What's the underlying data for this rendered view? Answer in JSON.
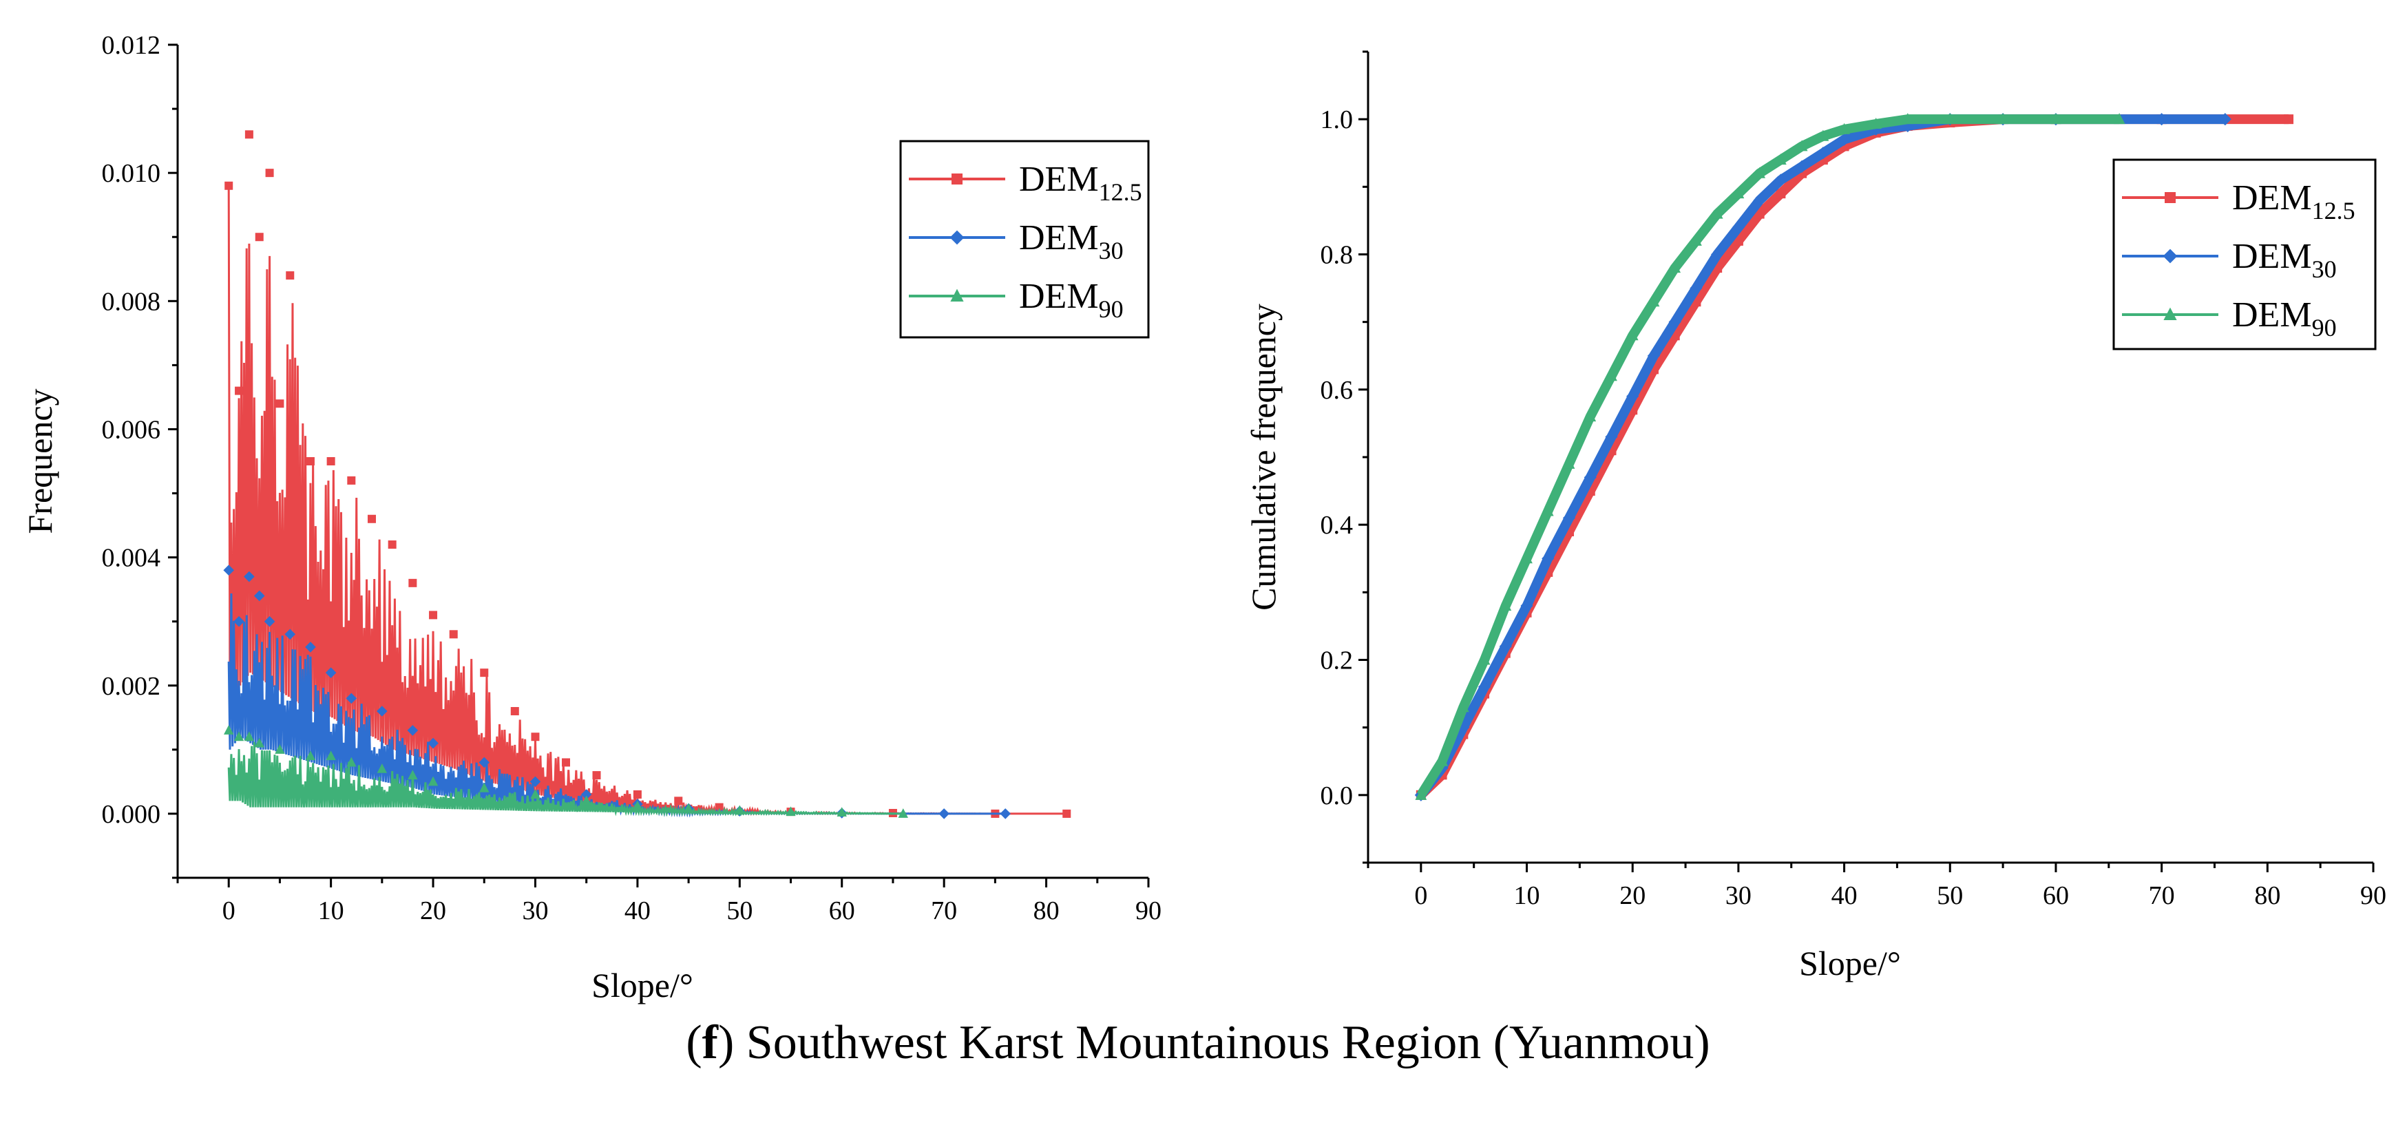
{
  "colors": {
    "dem125": "#e8474a",
    "dem30": "#2e6fd1",
    "dem90": "#3fb178",
    "axis": "#000000"
  },
  "caption": {
    "letter": "f",
    "text": "Southwest Karst Mountainous Region (Yuanmou)"
  },
  "chart_data": [
    {
      "type": "line",
      "title": "",
      "xlabel": "Slope/°",
      "ylabel": "Frequency",
      "xlim": [
        -5,
        90
      ],
      "ylim": [
        -0.001,
        0.012
      ],
      "xticks": [
        0,
        10,
        20,
        30,
        40,
        50,
        60,
        70,
        80,
        90
      ],
      "yticks": [
        0.0,
        0.002,
        0.004,
        0.006,
        0.008,
        0.01,
        0.012
      ],
      "ytick_labels": [
        "0.000",
        "0.002",
        "0.004",
        "0.006",
        "0.008",
        "0.010",
        "0.012"
      ],
      "legend_position": "top-right",
      "series": [
        {
          "name": "DEM12.5",
          "label_main": "DEM",
          "label_sub": "12.5",
          "color_key": "dem125",
          "marker": "square",
          "x": [
            0,
            1,
            2,
            3,
            4,
            5,
            6,
            8,
            10,
            12,
            14,
            16,
            18,
            20,
            22,
            25,
            28,
            30,
            33,
            36,
            40,
            44,
            48,
            55,
            65,
            75,
            82
          ],
          "y": [
            0.0098,
            0.0066,
            0.0106,
            0.009,
            0.01,
            0.0064,
            0.0084,
            0.0055,
            0.0055,
            0.0052,
            0.0046,
            0.0042,
            0.0036,
            0.0031,
            0.0028,
            0.0022,
            0.0016,
            0.0012,
            0.0008,
            0.0006,
            0.0003,
            0.0002,
            0.0001,
            3e-05,
            1e-05,
            0.0,
            0.0
          ],
          "y_base": [
            0.0015,
            0.002,
            0.0022,
            0.0021,
            0.002,
            0.0019,
            0.0018,
            0.0016,
            0.0015,
            0.0013,
            0.0012,
            0.001,
            0.0009,
            0.0008,
            0.0007,
            0.0005,
            0.0004,
            0.0003,
            0.0002,
            0.0001,
            6e-05,
            3e-05,
            2e-05,
            0.0,
            0.0,
            0.0,
            0.0
          ]
        },
        {
          "name": "DEM30",
          "label_main": "DEM",
          "label_sub": "30",
          "color_key": "dem30",
          "marker": "diamond",
          "x": [
            0,
            1,
            2,
            3,
            4,
            6,
            8,
            10,
            12,
            15,
            18,
            20,
            25,
            30,
            35,
            40,
            45,
            50,
            60,
            70,
            76
          ],
          "y": [
            0.0038,
            0.003,
            0.0037,
            0.0034,
            0.003,
            0.0028,
            0.0026,
            0.0022,
            0.0018,
            0.0016,
            0.0013,
            0.0011,
            0.0008,
            0.0005,
            0.0003,
            0.00015,
            8e-05,
            4e-05,
            1e-05,
            0.0,
            0.0
          ],
          "y_base": [
            0.001,
            0.0012,
            0.0011,
            0.001,
            0.001,
            0.0009,
            0.0008,
            0.0007,
            0.0006,
            0.0005,
            0.0004,
            0.0003,
            0.0002,
            0.0001,
            5e-05,
            2e-05,
            0.0,
            0.0,
            0.0,
            0.0,
            0.0
          ]
        },
        {
          "name": "DEM90",
          "label_main": "DEM",
          "label_sub": "90",
          "color_key": "dem90",
          "marker": "triangle",
          "x": [
            0,
            1,
            2,
            3,
            5,
            8,
            10,
            12,
            15,
            18,
            20,
            25,
            30,
            35,
            40,
            45,
            50,
            55,
            60,
            66
          ],
          "y": [
            0.0013,
            0.0012,
            0.0012,
            0.0011,
            0.001,
            0.0009,
            0.0009,
            0.0008,
            0.0007,
            0.0006,
            0.0005,
            0.0004,
            0.0003,
            0.0002,
            0.00012,
            8e-05,
            5e-05,
            3e-05,
            2e-05,
            0.0
          ],
          "y_base": [
            0.0002,
            0.0002,
            0.0001,
            0.0001,
            0.0001,
            0.0001,
            0.0001,
            0.0001,
            0.0001,
            0.0001,
            8e-05,
            6e-05,
            4e-05,
            3e-05,
            2e-05,
            1e-05,
            0.0,
            0.0,
            0.0,
            0.0
          ]
        }
      ]
    },
    {
      "type": "line",
      "title": "",
      "xlabel": "Slope/°",
      "ylabel": "Cumulative frequency",
      "xlim": [
        -5,
        90
      ],
      "ylim": [
        -0.1,
        1.1
      ],
      "xticks": [
        0,
        10,
        20,
        30,
        40,
        50,
        60,
        70,
        80,
        90
      ],
      "yticks": [
        0.0,
        0.2,
        0.4,
        0.6,
        0.8,
        1.0
      ],
      "ytick_labels": [
        "0.0",
        "0.2",
        "0.4",
        "0.6",
        "0.8",
        "1.0"
      ],
      "legend_position": "top-right",
      "series": [
        {
          "name": "DEM12.5",
          "label_main": "DEM",
          "label_sub": "12.5",
          "color_key": "dem125",
          "marker": "square",
          "x": [
            0,
            2,
            4,
            6,
            8,
            10,
            12,
            14,
            16,
            18,
            20,
            22,
            24,
            26,
            28,
            30,
            32,
            34,
            36,
            38,
            40,
            43,
            46,
            50,
            55,
            60,
            70,
            82
          ],
          "y": [
            0.0,
            0.03,
            0.09,
            0.15,
            0.21,
            0.27,
            0.33,
            0.39,
            0.45,
            0.51,
            0.57,
            0.63,
            0.68,
            0.73,
            0.78,
            0.82,
            0.86,
            0.89,
            0.92,
            0.94,
            0.96,
            0.98,
            0.99,
            0.995,
            1.0,
            1.0,
            1.0,
            1.0
          ]
        },
        {
          "name": "DEM30",
          "label_main": "DEM",
          "label_sub": "30",
          "color_key": "dem30",
          "marker": "diamond",
          "x": [
            0,
            2,
            4,
            6,
            8,
            10,
            12,
            14,
            16,
            18,
            20,
            22,
            24,
            26,
            28,
            30,
            32,
            34,
            36,
            38,
            40,
            43,
            46,
            50,
            55,
            60,
            70,
            76
          ],
          "y": [
            0.0,
            0.04,
            0.1,
            0.16,
            0.22,
            0.28,
            0.35,
            0.41,
            0.47,
            0.53,
            0.59,
            0.65,
            0.7,
            0.75,
            0.8,
            0.84,
            0.88,
            0.91,
            0.93,
            0.95,
            0.97,
            0.985,
            0.99,
            1.0,
            1.0,
            1.0,
            1.0,
            1.0
          ]
        },
        {
          "name": "DEM90",
          "label_main": "DEM",
          "label_sub": "90",
          "color_key": "dem90",
          "marker": "triangle",
          "x": [
            0,
            2,
            4,
            6,
            8,
            10,
            12,
            14,
            16,
            18,
            20,
            22,
            24,
            26,
            28,
            30,
            32,
            34,
            36,
            38,
            40,
            43,
            46,
            50,
            55,
            60,
            66
          ],
          "y": [
            0.0,
            0.05,
            0.13,
            0.2,
            0.28,
            0.35,
            0.42,
            0.49,
            0.56,
            0.62,
            0.68,
            0.73,
            0.78,
            0.82,
            0.86,
            0.89,
            0.92,
            0.94,
            0.96,
            0.975,
            0.985,
            0.993,
            1.0,
            1.0,
            1.0,
            1.0,
            1.0
          ]
        }
      ]
    }
  ]
}
